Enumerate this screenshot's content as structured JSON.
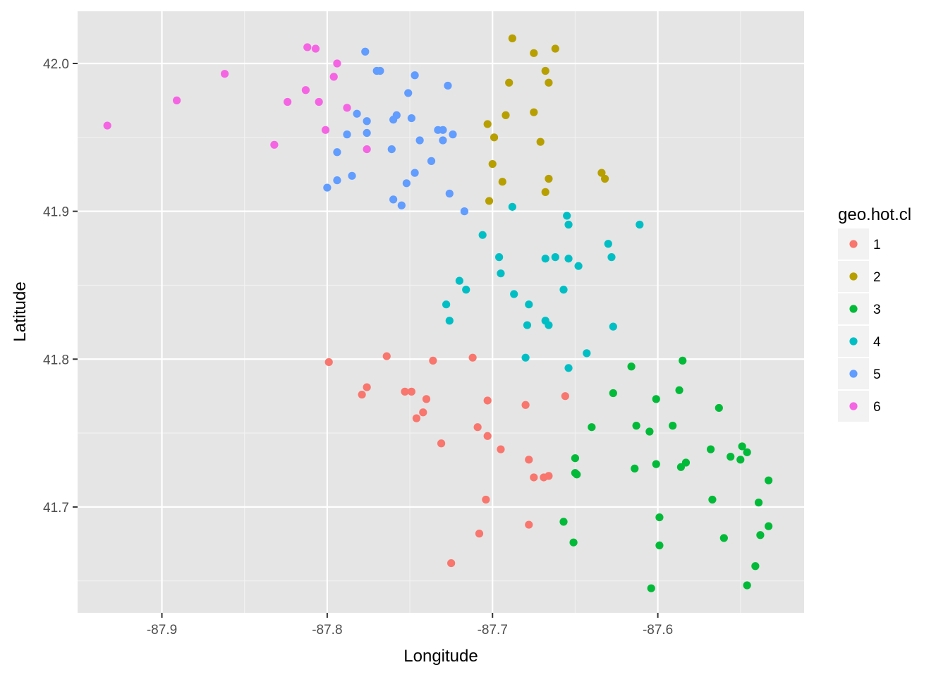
{
  "chart_data": {
    "type": "scatter",
    "xlabel": "Longitude",
    "ylabel": "Latitude",
    "xlim": [
      -87.951,
      -87.5115
    ],
    "ylim": [
      41.6284,
      42.0353
    ],
    "x_ticks": [
      -87.9,
      -87.8,
      -87.7,
      -87.6
    ],
    "x_tick_labels": [
      "-87.9",
      "-87.8",
      "-87.7",
      "-87.6"
    ],
    "x_minor_ticks": [
      -87.85,
      -87.75,
      -87.65,
      -87.55
    ],
    "y_ticks": [
      41.7,
      41.8,
      41.9,
      42.0
    ],
    "y_tick_labels": [
      "41.7",
      "41.8",
      "41.9",
      "42.0"
    ],
    "y_minor_ticks": [
      41.65,
      41.75,
      41.85,
      41.95
    ],
    "grid": true,
    "background": "#e5e5e5",
    "legend": {
      "title": "geo.hot.cl",
      "placement": "right"
    },
    "series": [
      {
        "name": "1",
        "color": "#f8766d",
        "points": [
          [
            -87.799,
            41.798
          ],
          [
            -87.764,
            41.802
          ],
          [
            -87.736,
            41.799
          ],
          [
            -87.712,
            41.801
          ],
          [
            -87.776,
            41.781
          ],
          [
            -87.779,
            41.776
          ],
          [
            -87.753,
            41.778
          ],
          [
            -87.749,
            41.778
          ],
          [
            -87.74,
            41.773
          ],
          [
            -87.703,
            41.772
          ],
          [
            -87.656,
            41.775
          ],
          [
            -87.68,
            41.769
          ],
          [
            -87.742,
            41.764
          ],
          [
            -87.746,
            41.76
          ],
          [
            -87.709,
            41.754
          ],
          [
            -87.703,
            41.748
          ],
          [
            -87.731,
            41.743
          ],
          [
            -87.695,
            41.739
          ],
          [
            -87.678,
            41.732
          ],
          [
            -87.675,
            41.72
          ],
          [
            -87.669,
            41.72
          ],
          [
            -87.666,
            41.721
          ],
          [
            -87.704,
            41.705
          ],
          [
            -87.708,
            41.682
          ],
          [
            -87.678,
            41.688
          ],
          [
            -87.725,
            41.662
          ]
        ]
      },
      {
        "name": "2",
        "color": "#b79f00",
        "points": [
          [
            -87.688,
            42.017
          ],
          [
            -87.662,
            42.01
          ],
          [
            -87.675,
            42.007
          ],
          [
            -87.668,
            41.995
          ],
          [
            -87.69,
            41.987
          ],
          [
            -87.666,
            41.987
          ],
          [
            -87.675,
            41.967
          ],
          [
            -87.692,
            41.965
          ],
          [
            -87.703,
            41.959
          ],
          [
            -87.699,
            41.95
          ],
          [
            -87.671,
            41.947
          ],
          [
            -87.7,
            41.932
          ],
          [
            -87.634,
            41.926
          ],
          [
            -87.632,
            41.922
          ],
          [
            -87.666,
            41.922
          ],
          [
            -87.694,
            41.92
          ],
          [
            -87.668,
            41.913
          ],
          [
            -87.702,
            41.907
          ]
        ]
      },
      {
        "name": "3",
        "color": "#00ba38",
        "points": [
          [
            -87.585,
            41.799
          ],
          [
            -87.616,
            41.795
          ],
          [
            -87.627,
            41.777
          ],
          [
            -87.587,
            41.779
          ],
          [
            -87.601,
            41.773
          ],
          [
            -87.563,
            41.767
          ],
          [
            -87.613,
            41.755
          ],
          [
            -87.591,
            41.755
          ],
          [
            -87.64,
            41.754
          ],
          [
            -87.605,
            41.751
          ],
          [
            -87.568,
            41.739
          ],
          [
            -87.549,
            41.741
          ],
          [
            -87.546,
            41.737
          ],
          [
            -87.556,
            41.734
          ],
          [
            -87.55,
            41.732
          ],
          [
            -87.65,
            41.733
          ],
          [
            -87.583,
            41.73
          ],
          [
            -87.601,
            41.729
          ],
          [
            -87.586,
            41.727
          ],
          [
            -87.614,
            41.726
          ],
          [
            -87.65,
            41.723
          ],
          [
            -87.649,
            41.722
          ],
          [
            -87.533,
            41.718
          ],
          [
            -87.567,
            41.705
          ],
          [
            -87.539,
            41.703
          ],
          [
            -87.599,
            41.693
          ],
          [
            -87.657,
            41.69
          ],
          [
            -87.533,
            41.687
          ],
          [
            -87.538,
            41.681
          ],
          [
            -87.56,
            41.679
          ],
          [
            -87.651,
            41.676
          ],
          [
            -87.599,
            41.674
          ],
          [
            -87.541,
            41.66
          ],
          [
            -87.546,
            41.647
          ],
          [
            -87.604,
            41.645
          ]
        ]
      },
      {
        "name": "4",
        "color": "#00bfc4",
        "points": [
          [
            -87.688,
            41.903
          ],
          [
            -87.655,
            41.897
          ],
          [
            -87.611,
            41.891
          ],
          [
            -87.654,
            41.891
          ],
          [
            -87.706,
            41.884
          ],
          [
            -87.63,
            41.878
          ],
          [
            -87.696,
            41.869
          ],
          [
            -87.662,
            41.869
          ],
          [
            -87.668,
            41.868
          ],
          [
            -87.628,
            41.869
          ],
          [
            -87.654,
            41.868
          ],
          [
            -87.648,
            41.863
          ],
          [
            -87.695,
            41.858
          ],
          [
            -87.72,
            41.853
          ],
          [
            -87.716,
            41.847
          ],
          [
            -87.657,
            41.847
          ],
          [
            -87.687,
            41.844
          ],
          [
            -87.728,
            41.837
          ],
          [
            -87.678,
            41.837
          ],
          [
            -87.726,
            41.826
          ],
          [
            -87.668,
            41.826
          ],
          [
            -87.679,
            41.823
          ],
          [
            -87.666,
            41.823
          ],
          [
            -87.627,
            41.822
          ],
          [
            -87.643,
            41.804
          ],
          [
            -87.68,
            41.801
          ],
          [
            -87.654,
            41.794
          ]
        ]
      },
      {
        "name": "5",
        "color": "#619cff",
        "points": [
          [
            -87.777,
            42.008
          ],
          [
            -87.77,
            41.995
          ],
          [
            -87.768,
            41.995
          ],
          [
            -87.747,
            41.992
          ],
          [
            -87.727,
            41.985
          ],
          [
            -87.751,
            41.98
          ],
          [
            -87.782,
            41.966
          ],
          [
            -87.758,
            41.965
          ],
          [
            -87.76,
            41.962
          ],
          [
            -87.749,
            41.963
          ],
          [
            -87.776,
            41.961
          ],
          [
            -87.733,
            41.955
          ],
          [
            -87.73,
            41.955
          ],
          [
            -87.724,
            41.952
          ],
          [
            -87.776,
            41.953
          ],
          [
            -87.788,
            41.952
          ],
          [
            -87.744,
            41.948
          ],
          [
            -87.73,
            41.948
          ],
          [
            -87.761,
            41.942
          ],
          [
            -87.794,
            41.94
          ],
          [
            -87.737,
            41.934
          ],
          [
            -87.747,
            41.926
          ],
          [
            -87.785,
            41.924
          ],
          [
            -87.794,
            41.921
          ],
          [
            -87.752,
            41.919
          ],
          [
            -87.8,
            41.916
          ],
          [
            -87.726,
            41.912
          ],
          [
            -87.76,
            41.908
          ],
          [
            -87.755,
            41.904
          ],
          [
            -87.717,
            41.9
          ]
        ]
      },
      {
        "name": "6",
        "color": "#f564e3",
        "points": [
          [
            -87.812,
            42.011
          ],
          [
            -87.807,
            42.01
          ],
          [
            -87.794,
            42.0
          ],
          [
            -87.862,
            41.993
          ],
          [
            -87.796,
            41.991
          ],
          [
            -87.813,
            41.982
          ],
          [
            -87.891,
            41.975
          ],
          [
            -87.824,
            41.974
          ],
          [
            -87.805,
            41.974
          ],
          [
            -87.788,
            41.97
          ],
          [
            -87.933,
            41.958
          ],
          [
            -87.801,
            41.955
          ],
          [
            -87.832,
            41.945
          ],
          [
            -87.776,
            41.942
          ]
        ]
      }
    ]
  }
}
